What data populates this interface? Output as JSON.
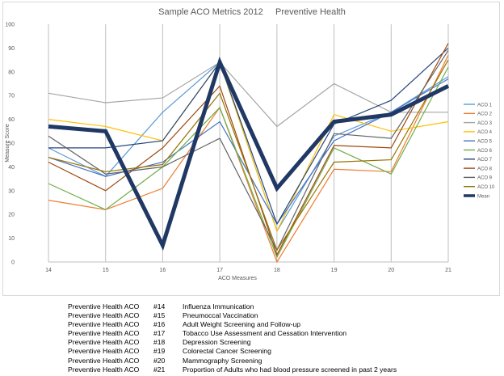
{
  "chart_data": {
    "type": "line",
    "title": "Sample ACO Metrics 2012     Preventive Health",
    "xlabel": "ACO Measures",
    "ylabel": "Measure Score",
    "ylim": [
      0,
      100
    ],
    "yticks": [
      0,
      10,
      20,
      30,
      40,
      50,
      60,
      70,
      80,
      90,
      100
    ],
    "categories": [
      "14",
      "15",
      "16",
      "17",
      "18",
      "19",
      "20",
      "21"
    ],
    "grid": "vertical",
    "legend_position": "right",
    "series": [
      {
        "name": "ACO 1",
        "color": "#5b9bd5",
        "width": 1.2,
        "values": [
          48,
          36,
          63,
          84,
          13,
          53,
          63,
          78
        ]
      },
      {
        "name": "ACO 2",
        "color": "#ed7d31",
        "width": 1.2,
        "values": [
          26,
          22,
          31,
          65,
          0,
          39,
          38,
          87
        ]
      },
      {
        "name": "ACO 3",
        "color": "#a5a5a5",
        "width": 1.2,
        "values": [
          71,
          67,
          69,
          84,
          57,
          75,
          63,
          63
        ]
      },
      {
        "name": "ACO 4",
        "color": "#ffc000",
        "width": 1.2,
        "values": [
          60,
          57,
          51,
          84,
          13,
          62,
          55,
          59
        ]
      },
      {
        "name": "ACO 5",
        "color": "#4472c4",
        "width": 1.2,
        "values": [
          44,
          36,
          42,
          59,
          16,
          51,
          63,
          77
        ]
      },
      {
        "name": "ACO 6",
        "color": "#70ad47",
        "width": 1.2,
        "values": [
          33,
          22,
          40,
          65,
          2,
          48,
          37,
          82
        ]
      },
      {
        "name": "ACO 7",
        "color": "#264478",
        "width": 1.2,
        "values": [
          48,
          48,
          51,
          84,
          16,
          58,
          68,
          90
        ]
      },
      {
        "name": "ACO 8",
        "color": "#9e480e",
        "width": 1.2,
        "values": [
          42,
          30,
          48,
          74,
          3,
          49,
          48,
          92
        ]
      },
      {
        "name": "ACO 9",
        "color": "#636363",
        "width": 1.2,
        "values": [
          53,
          37,
          40,
          52,
          5,
          54,
          52,
          89
        ]
      },
      {
        "name": "ACO 10",
        "color": "#997300",
        "width": 1.2,
        "values": [
          44,
          38,
          41,
          71,
          5,
          42,
          43,
          85
        ]
      },
      {
        "name": "Mean",
        "color": "#203864",
        "width": 5,
        "values": [
          57,
          55,
          7,
          84,
          31,
          59,
          62,
          74
        ]
      }
    ]
  },
  "footnotes": [
    {
      "prefix": "Preventive Health  ACO",
      "number": "#14",
      "description": "Influenza Immunication"
    },
    {
      "prefix": "Preventive Health  ACO",
      "number": "#15",
      "description": "Pneumoccal Vaccination"
    },
    {
      "prefix": "Preventive Health  ACO",
      "number": "#16",
      "description": "Adult Weight Screening and Follow-up"
    },
    {
      "prefix": "Preventive Health  ACO",
      "number": "#17",
      "description": "Tobacco Use Assessment and Cessation Intervention"
    },
    {
      "prefix": "Preventive Health  ACO",
      "number": "#18",
      "description": "Depression Screening"
    },
    {
      "prefix": "Preventive Health  ACO",
      "number": "#19",
      "description": "Colorectal Cancer Screening"
    },
    {
      "prefix": "Preventive Health  ACO",
      "number": "#20",
      "description": "Mammography Screening"
    },
    {
      "prefix": "Preventive Health  ACO",
      "number": "#21",
      "description": "Proportion of Adults who had blood pressure screened in past 2 years"
    }
  ]
}
